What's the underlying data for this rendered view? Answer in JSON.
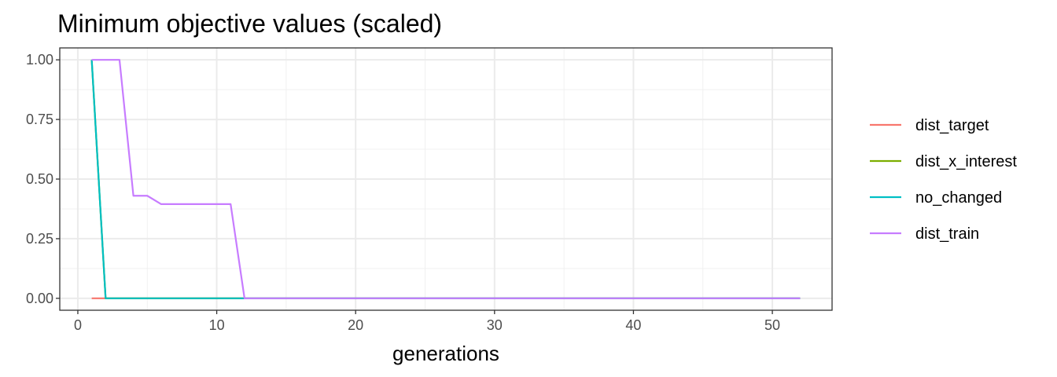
{
  "chart_data": {
    "type": "line",
    "title": "Minimum objective values (scaled)",
    "xlabel": "generations",
    "ylabel": "",
    "xlim": [
      -1.3,
      54.3
    ],
    "ylim": [
      -0.05,
      1.05
    ],
    "x_ticks": [
      0,
      10,
      20,
      30,
      40,
      50
    ],
    "x_tick_labels": [
      "0",
      "10",
      "20",
      "30",
      "40",
      "50"
    ],
    "y_ticks": [
      0,
      0.25,
      0.5,
      0.75,
      1.0
    ],
    "y_tick_labels": [
      "0.00",
      "0.25",
      "0.50",
      "0.75",
      "1.00"
    ],
    "grid": true,
    "legend_position": "right",
    "series": [
      {
        "name": "dist_target",
        "color": "#F8766D",
        "points": [
          [
            1,
            0
          ],
          [
            52,
            0
          ]
        ]
      },
      {
        "name": "dist_x_interest",
        "color": "#7CAE00",
        "points": [
          [
            1,
            1.0
          ],
          [
            2,
            0
          ],
          [
            52,
            0
          ]
        ]
      },
      {
        "name": "no_changed",
        "color": "#00BFC4",
        "points": [
          [
            1,
            1.0
          ],
          [
            2,
            0
          ],
          [
            52,
            0
          ]
        ]
      },
      {
        "name": "dist_train",
        "color": "#C77CFF",
        "points": [
          [
            1,
            1.0
          ],
          [
            2,
            1.0
          ],
          [
            3,
            1.0
          ],
          [
            4,
            0.43
          ],
          [
            5,
            0.43
          ],
          [
            6,
            0.395
          ],
          [
            7,
            0.395
          ],
          [
            8,
            0.395
          ],
          [
            9,
            0.395
          ],
          [
            10,
            0.395
          ],
          [
            11,
            0.395
          ],
          [
            12,
            0
          ],
          [
            52,
            0
          ]
        ]
      }
    ]
  }
}
